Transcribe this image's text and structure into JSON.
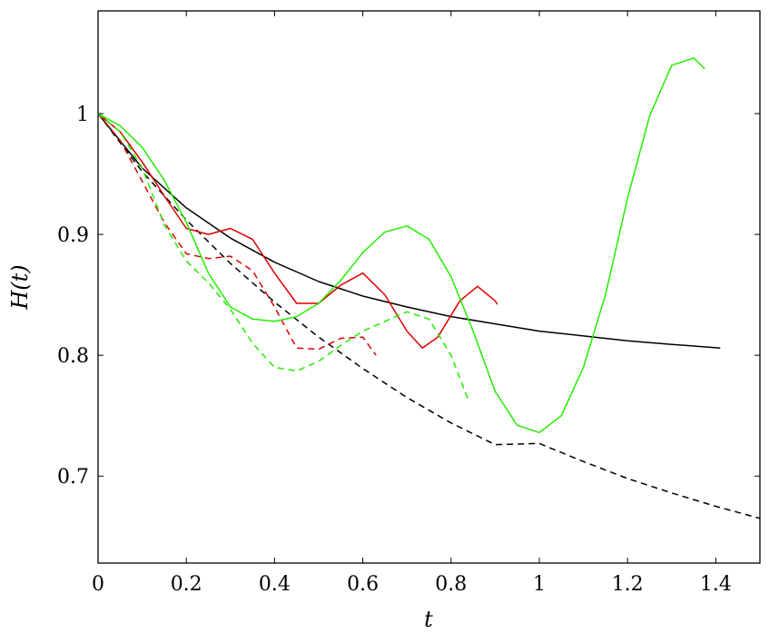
{
  "chart_data": {
    "type": "line",
    "title": "",
    "xlabel": "t",
    "ylabel": "H(t)",
    "xlim": [
      0,
      1.5
    ],
    "ylim": [
      0.628,
      1.085
    ],
    "xticks": [
      "0",
      "0.2",
      "0.4",
      "0.6",
      "0.8",
      "1",
      "1.2",
      "1.4"
    ],
    "yticks": [
      "0.7",
      "0.8",
      "0.9",
      "1"
    ],
    "grid": false,
    "series": [
      {
        "color": "#000000",
        "dash": "solid",
        "points": [
          [
            0,
            1.0
          ],
          [
            0.1,
            0.955
          ],
          [
            0.2,
            0.922
          ],
          [
            0.3,
            0.897
          ],
          [
            0.4,
            0.877
          ],
          [
            0.5,
            0.861
          ],
          [
            0.6,
            0.849
          ],
          [
            0.7,
            0.84
          ],
          [
            0.8,
            0.832
          ],
          [
            0.9,
            0.826
          ],
          [
            1.0,
            0.82
          ],
          [
            1.1,
            0.816
          ],
          [
            1.2,
            0.812
          ],
          [
            1.3,
            0.809
          ],
          [
            1.41,
            0.806
          ]
        ]
      },
      {
        "color": "#000000",
        "dash": "dashed",
        "points": [
          [
            0,
            1.0
          ],
          [
            0.1,
            0.952
          ],
          [
            0.2,
            0.912
          ],
          [
            0.3,
            0.876
          ],
          [
            0.4,
            0.844
          ],
          [
            0.5,
            0.815
          ],
          [
            0.6,
            0.789
          ],
          [
            0.7,
            0.765
          ],
          [
            0.8,
            0.744
          ],
          [
            0.9,
            0.726
          ],
          [
            1.0,
            0.727
          ],
          [
            1.1,
            0.712
          ],
          [
            1.2,
            0.698
          ],
          [
            1.3,
            0.686
          ],
          [
            1.4,
            0.675
          ],
          [
            1.5,
            0.665
          ]
        ]
      },
      {
        "color": "#dd0000",
        "dash": "solid",
        "points": [
          [
            0,
            1.0
          ],
          [
            0.05,
            0.985
          ],
          [
            0.1,
            0.96
          ],
          [
            0.15,
            0.932
          ],
          [
            0.2,
            0.905
          ],
          [
            0.25,
            0.9
          ],
          [
            0.3,
            0.905
          ],
          [
            0.35,
            0.896
          ],
          [
            0.4,
            0.868
          ],
          [
            0.45,
            0.843
          ],
          [
            0.5,
            0.843
          ],
          [
            0.55,
            0.858
          ],
          [
            0.6,
            0.868
          ],
          [
            0.65,
            0.85
          ],
          [
            0.7,
            0.82
          ],
          [
            0.735,
            0.806
          ],
          [
            0.77,
            0.815
          ],
          [
            0.82,
            0.845
          ],
          [
            0.86,
            0.857
          ],
          [
            0.9,
            0.845
          ],
          [
            0.905,
            0.842
          ]
        ]
      },
      {
        "color": "#dd0000",
        "dash": "dashed",
        "points": [
          [
            0,
            1.0
          ],
          [
            0.05,
            0.978
          ],
          [
            0.1,
            0.944
          ],
          [
            0.15,
            0.91
          ],
          [
            0.2,
            0.884
          ],
          [
            0.25,
            0.88
          ],
          [
            0.3,
            0.882
          ],
          [
            0.35,
            0.87
          ],
          [
            0.4,
            0.84
          ],
          [
            0.45,
            0.806
          ],
          [
            0.5,
            0.805
          ],
          [
            0.55,
            0.814
          ],
          [
            0.6,
            0.815
          ],
          [
            0.63,
            0.8
          ]
        ]
      },
      {
        "color": "#22ee00",
        "dash": "solid",
        "points": [
          [
            0,
            1.0
          ],
          [
            0.05,
            0.99
          ],
          [
            0.1,
            0.972
          ],
          [
            0.15,
            0.945
          ],
          [
            0.2,
            0.91
          ],
          [
            0.25,
            0.868
          ],
          [
            0.3,
            0.84
          ],
          [
            0.35,
            0.83
          ],
          [
            0.4,
            0.828
          ],
          [
            0.45,
            0.832
          ],
          [
            0.5,
            0.843
          ],
          [
            0.55,
            0.862
          ],
          [
            0.6,
            0.885
          ],
          [
            0.65,
            0.902
          ],
          [
            0.7,
            0.907
          ],
          [
            0.75,
            0.896
          ],
          [
            0.8,
            0.865
          ],
          [
            0.85,
            0.82
          ],
          [
            0.9,
            0.77
          ],
          [
            0.95,
            0.742
          ],
          [
            1.0,
            0.736
          ],
          [
            1.05,
            0.75
          ],
          [
            1.1,
            0.79
          ],
          [
            1.15,
            0.85
          ],
          [
            1.2,
            0.93
          ],
          [
            1.25,
            0.998
          ],
          [
            1.3,
            1.04
          ],
          [
            1.35,
            1.046
          ],
          [
            1.375,
            1.037
          ]
        ]
      },
      {
        "color": "#22ee00",
        "dash": "dashed",
        "points": [
          [
            0,
            1.0
          ],
          [
            0.05,
            0.985
          ],
          [
            0.1,
            0.955
          ],
          [
            0.15,
            0.908
          ],
          [
            0.2,
            0.878
          ],
          [
            0.25,
            0.86
          ],
          [
            0.3,
            0.838
          ],
          [
            0.35,
            0.81
          ],
          [
            0.4,
            0.79
          ],
          [
            0.45,
            0.787
          ],
          [
            0.5,
            0.795
          ],
          [
            0.55,
            0.808
          ],
          [
            0.6,
            0.82
          ],
          [
            0.65,
            0.828
          ],
          [
            0.7,
            0.836
          ],
          [
            0.75,
            0.83
          ],
          [
            0.8,
            0.8
          ],
          [
            0.84,
            0.762
          ]
        ]
      }
    ]
  }
}
